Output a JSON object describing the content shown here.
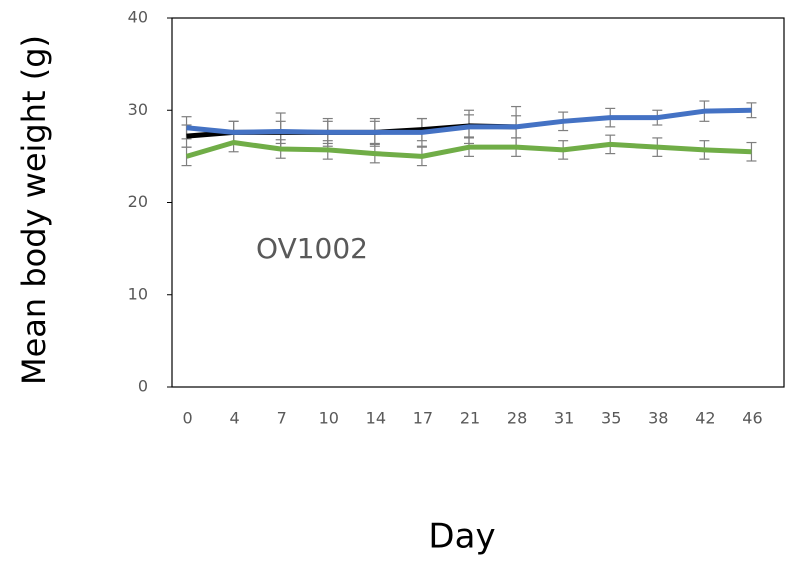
{
  "chart_data": {
    "type": "line",
    "y_label": "Mean body weight (g)",
    "x_label": "Day",
    "annotation": "OV1002",
    "categories": [
      "0",
      "4",
      "7",
      "10",
      "14",
      "17",
      "21",
      "28",
      "31",
      "35",
      "38",
      "42",
      "46"
    ],
    "series": [
      {
        "color": "#000000",
        "values": [
          27.2,
          27.6,
          27.6,
          27.6,
          27.6,
          27.9,
          28.3,
          28.2,
          null,
          null,
          null,
          null,
          null
        ],
        "errors": [
          1.2,
          1.2,
          1.2,
          1.2,
          1.2,
          1.2,
          1.2,
          1.2,
          null,
          null,
          null,
          null,
          null
        ]
      },
      {
        "color": "#4472c4",
        "values": [
          28.1,
          27.6,
          27.7,
          27.6,
          27.6,
          27.6,
          28.2,
          28.2,
          28.8,
          29.2,
          29.2,
          29.9,
          30.0
        ],
        "errors": [
          1.2,
          1.2,
          2.0,
          1.5,
          1.5,
          1.5,
          1.8,
          2.2,
          1.0,
          1.0,
          0.8,
          1.1,
          0.8
        ]
      },
      {
        "color": "#70ad47",
        "values": [
          25.0,
          26.5,
          25.8,
          25.7,
          25.3,
          25.0,
          26.0,
          26.0,
          25.7,
          26.3,
          26.0,
          25.7,
          25.5
        ],
        "errors": [
          1.0,
          1.0,
          1.0,
          1.0,
          1.0,
          1.0,
          1.0,
          1.0,
          1.0,
          1.0,
          1.0,
          1.0,
          1.0
        ]
      }
    ],
    "ylim": [
      0,
      40
    ],
    "yticks": [
      0,
      10,
      20,
      30,
      40
    ],
    "grid": false
  }
}
